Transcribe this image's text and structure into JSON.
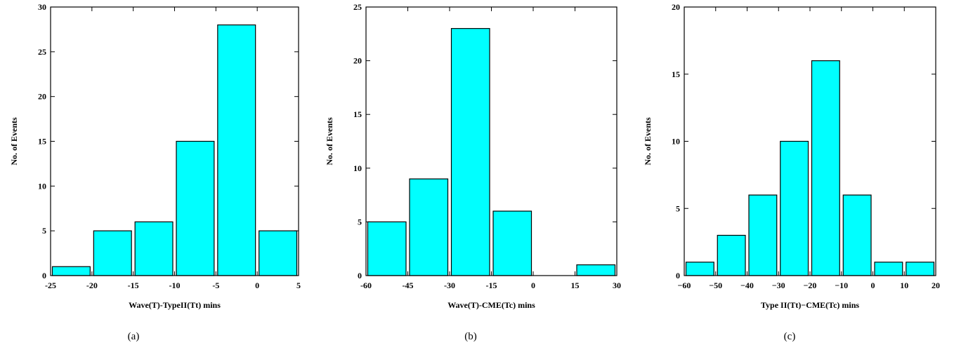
{
  "chart_data": [
    {
      "type": "bar",
      "caption": "(a)",
      "xlabel": "Wave(T)-TypeII(Tt) mins",
      "ylabel": "No. of Events",
      "xlim": [
        -25,
        5
      ],
      "ylim": [
        0,
        30
      ],
      "xticks": [
        "-25",
        "-20",
        "-15",
        "-10",
        "-5",
        "0",
        "5"
      ],
      "yticks": [
        "0",
        "5",
        "10",
        "15",
        "20",
        "25",
        "30"
      ],
      "bins": [
        {
          "start": -25,
          "end": -20,
          "value": 1
        },
        {
          "start": -20,
          "end": -15,
          "value": 5
        },
        {
          "start": -15,
          "end": -10,
          "value": 6
        },
        {
          "start": -10,
          "end": -5,
          "value": 15
        },
        {
          "start": -5,
          "end": 0,
          "value": 28
        },
        {
          "start": 0,
          "end": 5,
          "value": 5
        }
      ],
      "bar_color": "#00FFFF",
      "grid": false
    },
    {
      "type": "bar",
      "caption": "(b)",
      "xlabel": "Wave(T)-CME(Tc) mins",
      "ylabel": "No. of Events",
      "xlim": [
        -60,
        30
      ],
      "ylim": [
        0,
        25
      ],
      "xticks": [
        "-60",
        "-45",
        "-30",
        "-15",
        "0",
        "15",
        "30"
      ],
      "yticks": [
        "0",
        "5",
        "10",
        "15",
        "20",
        "25"
      ],
      "bins": [
        {
          "start": -60,
          "end": -45,
          "value": 5
        },
        {
          "start": -45,
          "end": -30,
          "value": 9
        },
        {
          "start": -30,
          "end": -15,
          "value": 23
        },
        {
          "start": -15,
          "end": 0,
          "value": 6
        },
        {
          "start": 0,
          "end": 15,
          "value": 0
        },
        {
          "start": 15,
          "end": 30,
          "value": 1
        }
      ],
      "bar_color": "#00FFFF",
      "grid": false
    },
    {
      "type": "bar",
      "caption": "(c)",
      "xlabel": "Type II(Tt)−CME(Tc) mins",
      "ylabel": "No. of Events",
      "xlim": [
        -60,
        20
      ],
      "ylim": [
        0,
        20
      ],
      "xticks": [
        "−60",
        "−50",
        "−40",
        "−30",
        "−20",
        "−10",
        "0",
        "10",
        "20"
      ],
      "yticks": [
        "0",
        "5",
        "10",
        "15",
        "20"
      ],
      "bins": [
        {
          "start": -60,
          "end": -50,
          "value": 1
        },
        {
          "start": -50,
          "end": -40,
          "value": 3
        },
        {
          "start": -40,
          "end": -30,
          "value": 6
        },
        {
          "start": -30,
          "end": -20,
          "value": 10
        },
        {
          "start": -20,
          "end": -10,
          "value": 16
        },
        {
          "start": -10,
          "end": 0,
          "value": 6
        },
        {
          "start": 0,
          "end": 10,
          "value": 1
        },
        {
          "start": 10,
          "end": 20,
          "value": 1
        }
      ],
      "bar_color": "#00FFFF",
      "grid": false
    }
  ]
}
